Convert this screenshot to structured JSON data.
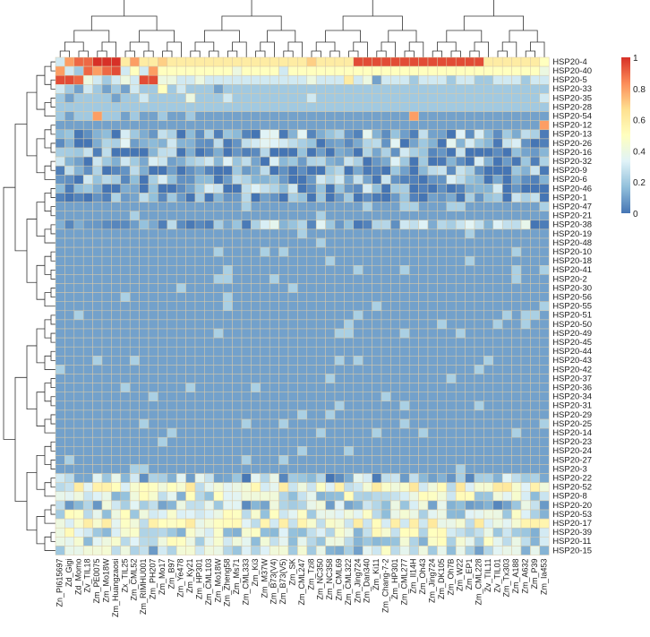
{
  "chart_data": {
    "type": "heatmap",
    "title": "",
    "xlabel": "",
    "ylabel": "",
    "rows": [
      "HSP20-4",
      "HSP20-40",
      "HSP20-5",
      "HSP20-33",
      "HSP20-35",
      "HSP20-28",
      "HSP20-54",
      "HSP20-12",
      "HSP20-13",
      "HSP20-26",
      "HSP20-16",
      "HSP20-32",
      "HSP20-9",
      "HSP20-6",
      "HSP20-46",
      "HSP20-1",
      "HSP20-47",
      "HSP20-21",
      "HSP20-38",
      "HSP20-19",
      "HSP20-48",
      "HSP20-10",
      "HSP20-18",
      "HSP20-41",
      "HSP20-2",
      "HSP20-30",
      "HSP20-56",
      "HSP20-55",
      "HSP20-51",
      "HSP20-50",
      "HSP20-49",
      "HSP20-45",
      "HSP20-44",
      "HSP20-43",
      "HSP20-42",
      "HSP20-37",
      "HSP20-36",
      "HSP20-34",
      "HSP20-31",
      "HSP20-29",
      "HSP20-25",
      "HSP20-14",
      "HSP20-23",
      "HSP20-24",
      "HSP20-27",
      "HSP20-3",
      "HSP20-22",
      "HSP20-52",
      "HSP20-8",
      "HSP20-20",
      "HSP20-53",
      "HSP20-17",
      "HSP20-39",
      "HSP20-11",
      "HSP20-15"
    ],
    "columns": [
      "Zn_PI615697",
      "Zd_Gigi",
      "Zd_Momo",
      "Zv_TIL18",
      "Zm_PE0075",
      "Zm_Mo18W",
      "Zm_Huangzaosi",
      "Zx_TIL25",
      "Zm_CML52",
      "Zm_RIMHU001",
      "Zm_PH207",
      "Zm_Mo17",
      "Zm_B97",
      "Zm_Ye478",
      "Zm_Ky21",
      "Zm_HP301",
      "Zm_CML103",
      "Zm_Mo18W",
      "Zm_Zheng58",
      "Zm_Ms71",
      "Zm_CML333",
      "Zm_Ki3",
      "Zm_M37W",
      "Zm_B73(V4)",
      "Zm_B73(V5)",
      "Zm_SK",
      "Zm_CML247",
      "Zm_Tzi8",
      "Zm_NC350",
      "Zm_NC358",
      "Zm_CML69",
      "Zm_CML322",
      "Zm_Jing724",
      "Zm_Dan340",
      "Zm_Ki11",
      "Zm_Chang-7-2",
      "Zm_HP301",
      "Zm_CML277",
      "Zm_Il14H",
      "Zm_Oh43",
      "Zm_Jing724",
      "Zm_DK105",
      "Zm_Oh7B",
      "Zm_W22",
      "Zm_EP1",
      "Zm_CML228",
      "Zv_TIL11",
      "Zv_TIL01",
      "Zm_Tx303",
      "Zm_A188",
      "Zm_A632",
      "Zm_P39",
      "Zm_Ia453"
    ],
    "colorbar": {
      "ticks": [
        "1",
        "0.8",
        "0.6",
        "0.4",
        "0.2",
        "0"
      ],
      "colors": [
        "#d73027",
        "#fc8d59",
        "#fee090",
        "#ffffbf",
        "#e0f3f8",
        "#91bfdb",
        "#4575b4"
      ]
    },
    "value_range": [
      0,
      1
    ],
    "row_values": {
      "HSP20-4": [
        0.3,
        0.8,
        0.9,
        0.9,
        1,
        1,
        1,
        0.6,
        0.8,
        0.6,
        0.6,
        0.7,
        0.6,
        0.6,
        0.6,
        0.6,
        0.6,
        0.6,
        0.6,
        0.6,
        0.6,
        0.6,
        0.6,
        0.6,
        0.6,
        0.6,
        0.6,
        0.7,
        0.6,
        0.6,
        0.6,
        0.6,
        0.95,
        0.95,
        0.95,
        0.95,
        0.95,
        0.95,
        0.95,
        0.95,
        0.95,
        0.95,
        0.95,
        0.95,
        0.95,
        0.95,
        0.6,
        0.6,
        0.6,
        0.6,
        0.6,
        0.6,
        0.5
      ],
      "HSP20-40": [
        0.8,
        0.3,
        0.2,
        0.9,
        0.8,
        0.9,
        0.95,
        0.3,
        0.5,
        0.3,
        0.8,
        0.5,
        0.5,
        0.5,
        0.5,
        0.5,
        0.5,
        0.5,
        0.5,
        0.4,
        0.5,
        0.5,
        0.5,
        0.5,
        0.3,
        0.5,
        0.5,
        0.5,
        0.5,
        0.5,
        0.5,
        0.5,
        0.5,
        0.5,
        0.5,
        0.5,
        0.5,
        0.5,
        0.5,
        0.5,
        0.5,
        0.5,
        0.5,
        0.5,
        0.5,
        0.5,
        0.5,
        0.5,
        0.5,
        0.5,
        0.5,
        0.5,
        0.4
      ],
      "HSP20-5": [
        0.95,
        0.95,
        0.9,
        0.4,
        0.3,
        0.2,
        0.3,
        0.4,
        0.3,
        0.95,
        0.95,
        0.4,
        0.4,
        0.3,
        0.3,
        0.4,
        0.3,
        0.3,
        0.3,
        0.3,
        0.3,
        0.3,
        0.3,
        0.3,
        0.3,
        0.3,
        0.3,
        0.4,
        0.3,
        0.3,
        0.3,
        0.6,
        0.3,
        0.4,
        0.1,
        0.3,
        0.3,
        0.3,
        0.2,
        0.3,
        0.3,
        0.3,
        0.2,
        0.3,
        0.3,
        0.2,
        0.2,
        0.3,
        0.3,
        0.3,
        0.2,
        0.3,
        0.3
      ],
      "HSP20-33": [
        0.3,
        0.2,
        0.1,
        0.3,
        0.2,
        0.1,
        0.2,
        0.1,
        0.3,
        0.2,
        0.2,
        0.5,
        0.2,
        0.3,
        0.2,
        0.2,
        0.2,
        0.1,
        0.2,
        0.2,
        0.2,
        0.2,
        0.2,
        0.2,
        0.2,
        0.2,
        0.2,
        0.2,
        0.2,
        0.2,
        0.2,
        0.2,
        0.2,
        0.2,
        0.2,
        0.2,
        0.2,
        0.2,
        0.2,
        0.2,
        0.2,
        0.2,
        0.2,
        0.2,
        0.2,
        0.2,
        0.2,
        0.2,
        0.2,
        0.2,
        0.2,
        0.2,
        0.2
      ],
      "HSP20-35": [
        0.2,
        0.1,
        0.2,
        0.2,
        0.2,
        0.2,
        0.1,
        0.2,
        0.2,
        0.3,
        0.2,
        0.2,
        0.2,
        0.2,
        0.4,
        0.2,
        0.2,
        0.2,
        0.3,
        0.2,
        0.2,
        0.2,
        0.2,
        0.2,
        0.2,
        0.2,
        0.2,
        0.3,
        0.2,
        0.2,
        0.2,
        0.2,
        0.2,
        0.2,
        0.2,
        0.2,
        0.2,
        0.2,
        0.2,
        0.2,
        0.2,
        0.2,
        0.2,
        0.2,
        0.2,
        0.2,
        0.2,
        0.2,
        0.2,
        0.2,
        0.2,
        0.2,
        0.3
      ],
      "HSP20-28": [
        0.2,
        0.2,
        0.2,
        0.2,
        0.2,
        0.2,
        0.2,
        0.2,
        0.2,
        0.2,
        0.2,
        0.2,
        0.2,
        0.2,
        0.2,
        0.2,
        0.2,
        0.2,
        0.2,
        0.2,
        0.2,
        0.2,
        0.2,
        0.2,
        0.2,
        0.2,
        0.2,
        0.2,
        0.2,
        0.2,
        0.2,
        0.2,
        0.2,
        0.2,
        0.2,
        0.2,
        0.2,
        0.2,
        0.2,
        0.2,
        0.2,
        0.2,
        0.2,
        0.2,
        0.2,
        0.2,
        0.2,
        0.2,
        0.2,
        0.2,
        0.2,
        0.2,
        0.2
      ],
      "HSP20-54": [
        0.2,
        0.1,
        0.2,
        0.2,
        0.8,
        0.2,
        0.2,
        0.1,
        0.2,
        0.1,
        0.1,
        0.2,
        0.1,
        0.1,
        0.2,
        0.1,
        0.1,
        0.1,
        0.1,
        0.1,
        0.1,
        0.1,
        0.1,
        0.1,
        0.1,
        0.1,
        0.1,
        0.1,
        0.1,
        0.1,
        0.1,
        0.1,
        0.1,
        0.1,
        0.1,
        0.1,
        0.1,
        0.1,
        0.8,
        0.1,
        0.1,
        0.1,
        0.1,
        0.1,
        0.1,
        0.1,
        0.1,
        0.1,
        0.1,
        0.1,
        0.1,
        0.1,
        0.1
      ],
      "HSP20-12": [
        0.1,
        0.1,
        0.1,
        0.1,
        0.1,
        0.1,
        0.1,
        0.1,
        0.1,
        0.1,
        0.1,
        0.1,
        0.1,
        0.1,
        0.1,
        0.1,
        0.1,
        0.1,
        0.1,
        0.1,
        0.1,
        0.1,
        0.1,
        0.1,
        0.1,
        0.1,
        0.1,
        0.1,
        0.1,
        0.1,
        0.1,
        0.1,
        0.1,
        0.1,
        0.1,
        0.1,
        0.1,
        0.1,
        0.1,
        0.1,
        0.1,
        0.1,
        0.1,
        0.1,
        0.1,
        0.1,
        0.1,
        0.1,
        0.1,
        0.1,
        0.1,
        0.1,
        0.8
      ]
    },
    "default_value": 0.1
  }
}
